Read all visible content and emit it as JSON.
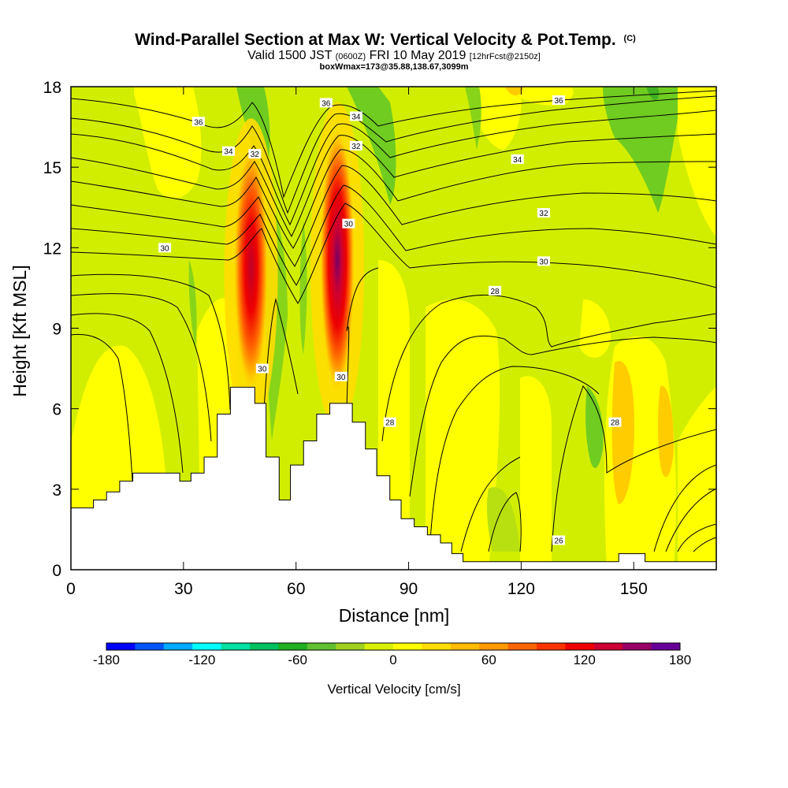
{
  "header": {
    "title_main": "Wind-Parallel Section at Max W: Vertical Velocity & Pot.Temp.",
    "title_mark": "(C)",
    "valid_prefix": "Valid 1500 JST",
    "valid_z": "(0600Z)",
    "valid_date": "FRI 10 May 2019",
    "valid_fcst": "[12hrFcst@2150z]",
    "box_info": "boxWmax=173@35.88,138.67,3099m"
  },
  "chart_data": {
    "type": "heatmap",
    "xlabel": "Distance [nm]",
    "ylabel": "Height [Kft MSL]",
    "xlim": [
      0,
      172
    ],
    "ylim": [
      0,
      18
    ],
    "xticks": [
      0,
      30,
      60,
      90,
      120,
      150
    ],
    "yticks": [
      0,
      3,
      6,
      9,
      12,
      15,
      18
    ],
    "colorbar": {
      "label": "Vertical Velocity [cm/s]",
      "min": -180,
      "max": 180,
      "ticks": [
        -180,
        -120,
        -60,
        0,
        60,
        120,
        180
      ],
      "colors": [
        "#0000ff",
        "#0055ff",
        "#00aaff",
        "#00ffff",
        "#00e0a0",
        "#00c060",
        "#20b020",
        "#60c030",
        "#a0d020",
        "#d8f000",
        "#ffff00",
        "#ffdd00",
        "#ffbb00",
        "#ff9900",
        "#ff6600",
        "#ff3300",
        "#ee0000",
        "#cc0033",
        "#990066",
        "#660099"
      ]
    },
    "updrafts": [
      {
        "x": 48,
        "z_base": 7.5,
        "z_top": 15.0,
        "peak_w": 130
      },
      {
        "x": 71,
        "z_base": 7.5,
        "z_top": 15.6,
        "peak_w": 173
      }
    ],
    "theta_contour_labels": [
      {
        "value": "36",
        "x": 34,
        "z": 16.7
      },
      {
        "value": "34",
        "x": 42,
        "z": 15.6
      },
      {
        "value": "32",
        "x": 49,
        "z": 15.5
      },
      {
        "value": "30",
        "x": 25,
        "z": 12.0
      },
      {
        "value": "36",
        "x": 68,
        "z": 17.4
      },
      {
        "value": "34",
        "x": 76,
        "z": 16.9
      },
      {
        "value": "32",
        "x": 76,
        "z": 15.8
      },
      {
        "value": "30",
        "x": 74,
        "z": 12.9
      },
      {
        "value": "30",
        "x": 51,
        "z": 7.5
      },
      {
        "value": "30",
        "x": 72,
        "z": 7.2
      },
      {
        "value": "28",
        "x": 85,
        "z": 5.5
      },
      {
        "value": "36",
        "x": 130,
        "z": 17.5
      },
      {
        "value": "34",
        "x": 119,
        "z": 15.3
      },
      {
        "value": "32",
        "x": 126,
        "z": 13.3
      },
      {
        "value": "30",
        "x": 126,
        "z": 11.5
      },
      {
        "value": "28",
        "x": 113,
        "z": 10.4
      },
      {
        "value": "26",
        "x": 130,
        "z": 1.1
      },
      {
        "value": "28",
        "x": 145,
        "z": 5.5
      }
    ],
    "terrain": [
      [
        0,
        2.3
      ],
      [
        6,
        2.3
      ],
      [
        6,
        2.6
      ],
      [
        9.5,
        2.6
      ],
      [
        9.5,
        2.9
      ],
      [
        13,
        2.9
      ],
      [
        13,
        3.3
      ],
      [
        16.5,
        3.3
      ],
      [
        16.5,
        3.6
      ],
      [
        29,
        3.6
      ],
      [
        29,
        3.3
      ],
      [
        32,
        3.3
      ],
      [
        32,
        3.6
      ],
      [
        35.5,
        3.6
      ],
      [
        35.5,
        4.2
      ],
      [
        39,
        4.2
      ],
      [
        39,
        5.8
      ],
      [
        42.5,
        5.8
      ],
      [
        42.5,
        6.8
      ],
      [
        49,
        6.8
      ],
      [
        49,
        6.2
      ],
      [
        52,
        6.2
      ],
      [
        52,
        4.2
      ],
      [
        55.5,
        4.2
      ],
      [
        55.5,
        2.6
      ],
      [
        58.5,
        2.6
      ],
      [
        58.5,
        3.9
      ],
      [
        62,
        3.9
      ],
      [
        62,
        4.8
      ],
      [
        65.5,
        4.8
      ],
      [
        65.5,
        5.8
      ],
      [
        69,
        5.8
      ],
      [
        69,
        6.2
      ],
      [
        75,
        6.2
      ],
      [
        75,
        5.5
      ],
      [
        78.5,
        5.5
      ],
      [
        78.5,
        4.5
      ],
      [
        81.5,
        4.5
      ],
      [
        81.5,
        3.5
      ],
      [
        85,
        3.5
      ],
      [
        85,
        2.6
      ],
      [
        88,
        2.6
      ],
      [
        88,
        1.9
      ],
      [
        91.5,
        1.9
      ],
      [
        91.5,
        1.6
      ],
      [
        95,
        1.6
      ],
      [
        95,
        1.3
      ],
      [
        98.5,
        1.3
      ],
      [
        98.5,
        1.0
      ],
      [
        101.5,
        1.0
      ],
      [
        101.5,
        0.6
      ],
      [
        104.5,
        0.6
      ],
      [
        104.5,
        0.3
      ],
      [
        146,
        0.3
      ],
      [
        146,
        0.6
      ],
      [
        153,
        0.6
      ],
      [
        153,
        0.3
      ],
      [
        172,
        0.3
      ]
    ]
  }
}
